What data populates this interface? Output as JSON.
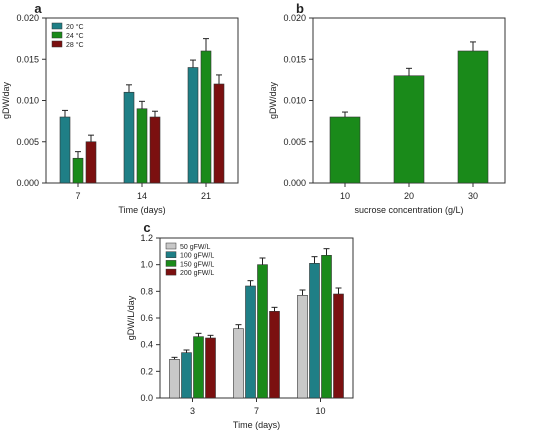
{
  "chart_data": [
    {
      "panel": "a",
      "type": "bar",
      "xlabel": "Time (days)",
      "ylabel": "gDW/day",
      "ylim": [
        0,
        0.02
      ],
      "yticks": [
        "0.000",
        "0.005",
        "0.010",
        "0.015",
        "0.020"
      ],
      "categories": [
        "7",
        "14",
        "21"
      ],
      "legend_position": "top-left",
      "series": [
        {
          "name": "20 °C",
          "color": "#1f7f86",
          "values": [
            0.008,
            0.011,
            0.014
          ],
          "errors": [
            0.0008,
            0.0009,
            0.0009
          ]
        },
        {
          "name": "24 °C",
          "color": "#1a8a1a",
          "values": [
            0.003,
            0.009,
            0.016
          ],
          "errors": [
            0.0008,
            0.0009,
            0.0015
          ]
        },
        {
          "name": "28 °C",
          "color": "#7b1010",
          "values": [
            0.005,
            0.008,
            0.012
          ],
          "errors": [
            0.0008,
            0.0007,
            0.0011
          ]
        }
      ]
    },
    {
      "panel": "b",
      "type": "bar",
      "xlabel": "sucrose concentration (g/L)",
      "ylabel": "gDW/day",
      "ylim": [
        0,
        0.02
      ],
      "yticks": [
        "0.000",
        "0.005",
        "0.010",
        "0.015",
        "0.020"
      ],
      "categories": [
        "10",
        "20",
        "30"
      ],
      "series": [
        {
          "name": "",
          "color": "#1a8a1a",
          "values": [
            0.008,
            0.013,
            0.016
          ],
          "errors": [
            0.0006,
            0.0009,
            0.0011
          ]
        }
      ]
    },
    {
      "panel": "c",
      "type": "bar",
      "xlabel": "Time (days)",
      "ylabel": "gDW/L/day",
      "ylim": [
        0,
        1.2
      ],
      "yticks": [
        "0.0",
        "0.2",
        "0.4",
        "0.6",
        "0.8",
        "1.0",
        "1.2"
      ],
      "categories": [
        "3",
        "7",
        "10"
      ],
      "legend_position": "top-left",
      "series": [
        {
          "name": "50 gFW/L",
          "color": "#c8c8c8",
          "values": [
            0.29,
            0.52,
            0.77
          ],
          "errors": [
            0.015,
            0.03,
            0.04
          ]
        },
        {
          "name": "100 gFW/L",
          "color": "#1f7f86",
          "values": [
            0.34,
            0.84,
            1.01
          ],
          "errors": [
            0.02,
            0.04,
            0.05
          ]
        },
        {
          "name": "150 gFW/L",
          "color": "#1a8a1a",
          "values": [
            0.46,
            1.0,
            1.07
          ],
          "errors": [
            0.025,
            0.05,
            0.05
          ]
        },
        {
          "name": "200 gFW/L",
          "color": "#7b1010",
          "values": [
            0.45,
            0.65,
            0.78
          ],
          "errors": [
            0.02,
            0.03,
            0.045
          ]
        }
      ]
    }
  ]
}
